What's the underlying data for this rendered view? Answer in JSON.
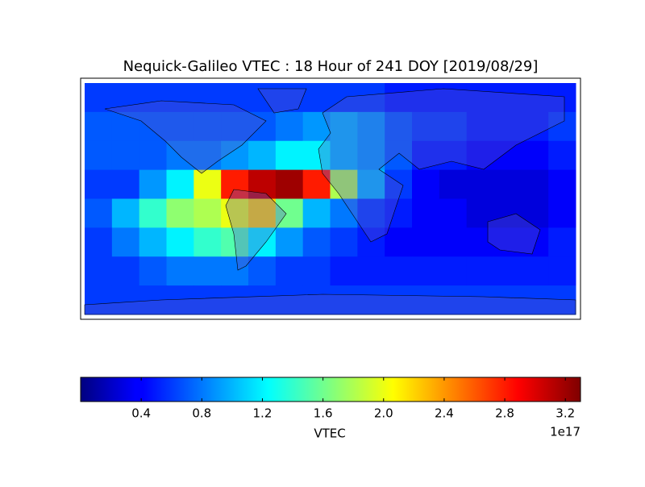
{
  "chart_data": {
    "type": "heatmap",
    "title": "Nequick-Galileo VTEC : 18 Hour of 241 DOY [2019/08/29]",
    "xlim": [
      -180,
      180
    ],
    "ylim": [
      -90,
      90
    ],
    "values": [
      [
        0.6,
        0.6,
        0.6,
        0.6,
        0.6,
        0.6,
        0.6,
        0.6,
        0.6,
        0.6,
        0.6,
        0.5,
        0.5,
        0.5,
        0.5,
        0.5,
        0.5,
        0.5
      ],
      [
        0.7,
        0.7,
        0.7,
        0.7,
        0.7,
        0.7,
        0.7,
        0.8,
        0.9,
        1.0,
        0.9,
        0.7,
        0.6,
        0.6,
        0.5,
        0.5,
        0.5,
        0.6
      ],
      [
        0.7,
        0.7,
        0.7,
        0.8,
        0.8,
        0.9,
        1.0,
        1.2,
        1.2,
        1.0,
        0.9,
        0.7,
        0.5,
        0.5,
        0.4,
        0.4,
        0.4,
        0.5
      ],
      [
        0.6,
        0.6,
        0.9,
        1.2,
        2.0,
        2.8,
        3.1,
        3.2,
        2.8,
        1.8,
        1.0,
        0.6,
        0.4,
        0.3,
        0.3,
        0.3,
        0.3,
        0.4
      ],
      [
        0.7,
        1.0,
        1.4,
        1.7,
        1.8,
        2.0,
        2.2,
        1.6,
        1.0,
        0.8,
        0.6,
        0.5,
        0.4,
        0.4,
        0.3,
        0.3,
        0.3,
        0.4
      ],
      [
        0.6,
        0.8,
        1.0,
        1.2,
        1.4,
        1.5,
        1.2,
        0.9,
        0.7,
        0.6,
        0.5,
        0.4,
        0.4,
        0.4,
        0.4,
        0.4,
        0.4,
        0.5
      ],
      [
        0.6,
        0.6,
        0.7,
        0.8,
        0.8,
        0.8,
        0.7,
        0.6,
        0.6,
        0.5,
        0.5,
        0.5,
        0.5,
        0.5,
        0.5,
        0.5,
        0.5,
        0.5
      ],
      [
        0.6,
        0.6,
        0.6,
        0.6,
        0.6,
        0.6,
        0.6,
        0.6,
        0.6,
        0.6,
        0.6,
        0.6,
        0.6,
        0.6,
        0.6,
        0.6,
        0.6,
        0.6
      ]
    ],
    "colorbar": {
      "label": "VTEC",
      "offset_label": "1e17",
      "lim": [
        0,
        3.3
      ],
      "ticks": [
        0.4,
        0.8,
        1.2,
        1.6,
        {
          "value": 2,
          "label": "2.0"
        },
        2.4,
        2.8,
        3.2
      ]
    }
  }
}
